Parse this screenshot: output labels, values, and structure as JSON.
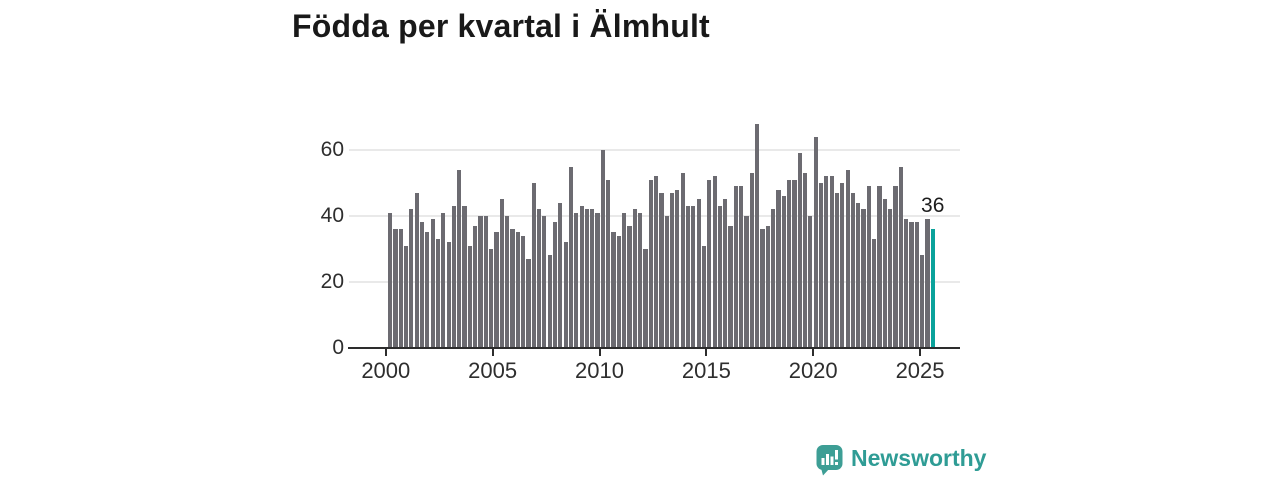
{
  "title": "Födda per kvartal i Älmhult",
  "annotation": {
    "value_label": "36"
  },
  "watermark": {
    "brand": "Newsworthy"
  },
  "colors": {
    "bar": "#6c6b71",
    "accent_bar": "#0aa29b",
    "gridline": "#e9e9e9",
    "axis": "#2d2d2d",
    "title_text": "#191919",
    "tick_text": "#2e2e2e",
    "logo": "#2f9c95"
  },
  "chart_data": {
    "type": "bar",
    "title": "Födda per kvartal i Älmhult",
    "xlabel": "",
    "ylabel": "",
    "x_interval": "quarter",
    "x_start": "2000 Q1",
    "x_end": "2025 Q3",
    "x_tick_labels": [
      "2000",
      "2005",
      "2010",
      "2015",
      "2020",
      "2025"
    ],
    "y_ticks": [
      0,
      20,
      40,
      60
    ],
    "y_tick_labels": [
      "0",
      "20",
      "40",
      "60"
    ],
    "ylim": [
      0,
      71
    ],
    "grid": "horizontal",
    "highlight": {
      "index": 102,
      "quarter": "2025 Q3",
      "value": 36,
      "labeled": true
    },
    "values": [
      41,
      36,
      36,
      31,
      42,
      47,
      38,
      35,
      39,
      33,
      41,
      32,
      43,
      54,
      43,
      31,
      37,
      40,
      40,
      30,
      35,
      45,
      40,
      36,
      35,
      34,
      27,
      50,
      42,
      40,
      28,
      38,
      44,
      32,
      55,
      41,
      43,
      42,
      42,
      41,
      60,
      51,
      35,
      34,
      41,
      37,
      42,
      41,
      30,
      51,
      52,
      47,
      40,
      47,
      48,
      53,
      43,
      43,
      45,
      31,
      51,
      52,
      43,
      45,
      37,
      49,
      49,
      40,
      53,
      68,
      36,
      37,
      42,
      48,
      46,
      51,
      51,
      59,
      53,
      40,
      64,
      50,
      52,
      52,
      47,
      50,
      54,
      47,
      44,
      42,
      49,
      33,
      49,
      45,
      42,
      49,
      55,
      39,
      38,
      38,
      28,
      39,
      36
    ]
  }
}
